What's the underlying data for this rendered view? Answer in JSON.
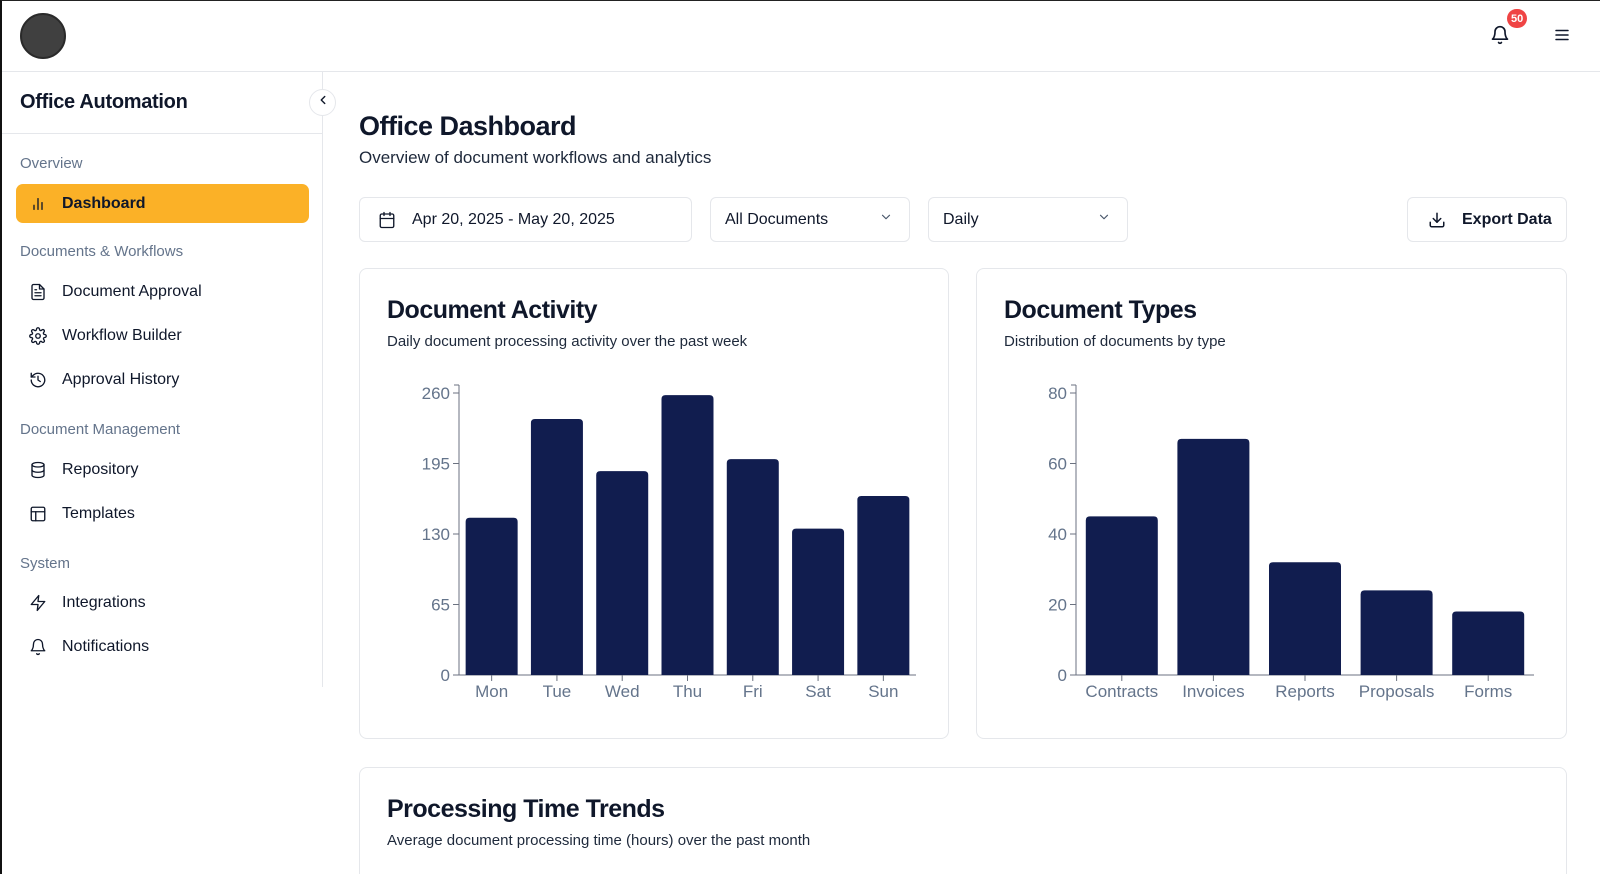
{
  "topbar": {
    "notification_count": "50"
  },
  "sidebar": {
    "app_title": "Office Automation",
    "sections": [
      {
        "label": "Overview"
      },
      {
        "label": "Documents & Workflows"
      },
      {
        "label": "Document Management"
      },
      {
        "label": "System"
      }
    ],
    "items": [
      {
        "label": "Dashboard",
        "icon": "bar-chart-icon",
        "active": true
      },
      {
        "label": "Document Approval",
        "icon": "file-text-icon"
      },
      {
        "label": "Workflow Builder",
        "icon": "gear-icon"
      },
      {
        "label": "Approval History",
        "icon": "history-icon"
      },
      {
        "label": "Repository",
        "icon": "database-icon"
      },
      {
        "label": "Templates",
        "icon": "layout-icon"
      },
      {
        "label": "Integrations",
        "icon": "lightning-icon"
      },
      {
        "label": "Notifications",
        "icon": "bell-icon"
      }
    ]
  },
  "main": {
    "title": "Office Dashboard",
    "subtitle": "Overview of document workflows and analytics",
    "filters": {
      "date_range": "Apr 20, 2025 - May 20, 2025",
      "document_filter": "All Documents",
      "period_filter": "Daily",
      "export_label": "Export Data"
    },
    "cards": {
      "activity": {
        "title": "Document Activity",
        "subtitle": "Daily document processing activity over the past week"
      },
      "types": {
        "title": "Document Types",
        "subtitle": "Distribution of documents by type"
      },
      "trends": {
        "title": "Processing Time Trends",
        "subtitle": "Average document processing time (hours) over the past month"
      }
    }
  },
  "colors": {
    "accent": "#fbb127",
    "bar": "#111d4f",
    "badge": "#ef4444"
  },
  "chart_data": [
    {
      "type": "bar",
      "categories": [
        "Mon",
        "Tue",
        "Wed",
        "Thu",
        "Fri",
        "Sat",
        "Sun"
      ],
      "values": [
        145,
        236,
        188,
        258,
        199,
        135,
        165
      ],
      "yticks": [
        0,
        65,
        130,
        195,
        260
      ],
      "ylim": [
        0,
        260
      ],
      "grid": false
    },
    {
      "type": "bar",
      "categories": [
        "Contracts",
        "Invoices",
        "Reports",
        "Proposals",
        "Forms"
      ],
      "values": [
        45,
        67,
        32,
        24,
        18
      ],
      "yticks": [
        0,
        20,
        40,
        60,
        80
      ],
      "ylim": [
        0,
        80
      ],
      "grid": false
    }
  ]
}
